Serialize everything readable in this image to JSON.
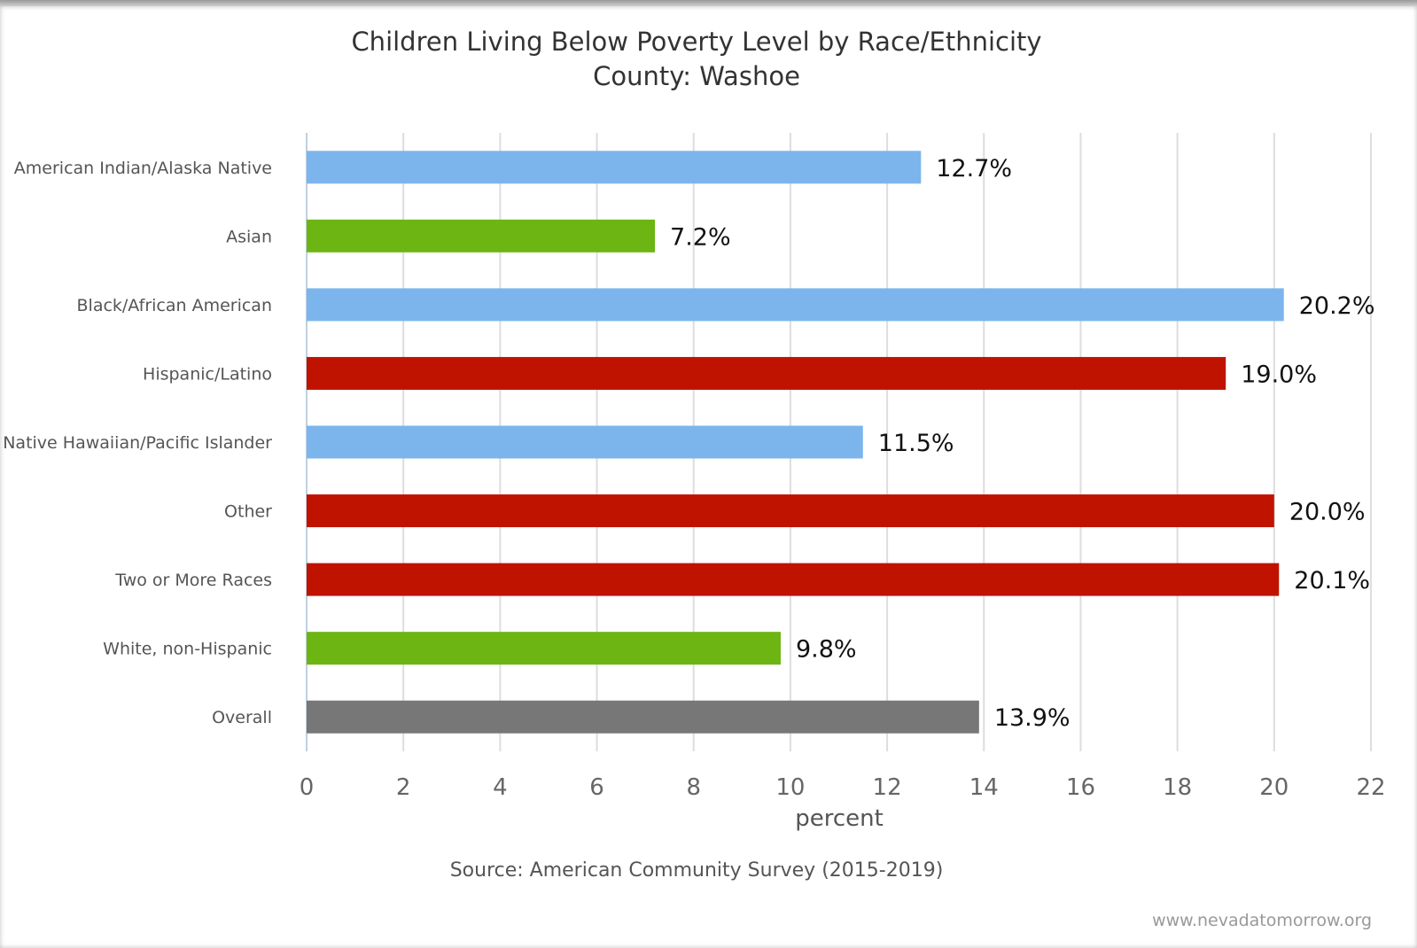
{
  "chart_data": {
    "type": "bar",
    "orientation": "horizontal",
    "title": "Children Living Below Poverty Level by Race/Ethnicity",
    "subtitle": "County: Washoe",
    "categories": [
      "American Indian/Alaska Native",
      "Asian",
      "Black/African American",
      "Hispanic/Latino",
      "Native Hawaiian/Pacific Islander",
      "Other",
      "Two or More Races",
      "White, non-Hispanic",
      "Overall"
    ],
    "values": [
      12.7,
      7.2,
      20.2,
      19.0,
      11.5,
      20.0,
      20.1,
      9.8,
      13.9
    ],
    "data_labels": [
      "12.7%",
      "7.2%",
      "20.2%",
      "19.0%",
      "11.5%",
      "20.0%",
      "20.1%",
      "9.8%",
      "13.9%"
    ],
    "bar_colors": [
      "#7cb5ec",
      "#6cb513",
      "#7cb5ec",
      "#bf1300",
      "#7cb5ec",
      "#bf1300",
      "#bf1300",
      "#6cb513",
      "#777777"
    ],
    "xlabel": "percent",
    "ylabel": "",
    "xlim": [
      0,
      22
    ],
    "xticks": [
      0,
      2,
      4,
      6,
      8,
      10,
      12,
      14,
      16,
      18,
      20,
      22
    ],
    "grid": true,
    "source": "Source: American Community Survey (2015-2019)",
    "credit": "www.nevadatomorrow.org"
  }
}
